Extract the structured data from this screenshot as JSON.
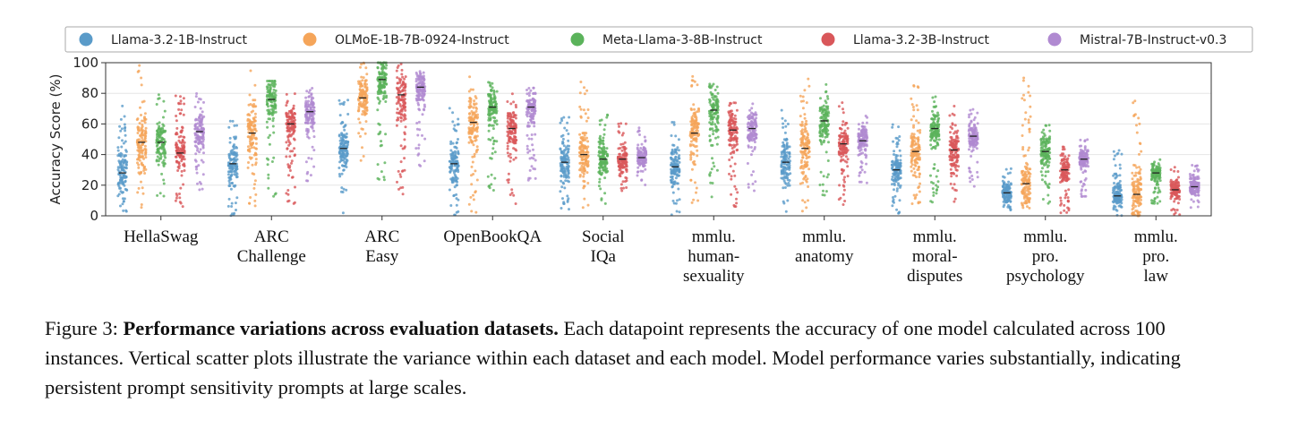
{
  "chart_data": {
    "type": "scatter",
    "subtype": "vertical strip plot with median markers",
    "ylabel": "Accuracy Score (%)",
    "ylim": [
      0,
      100
    ],
    "yticks": [
      "0",
      "20",
      "40",
      "60",
      "80",
      "100"
    ],
    "grid": true,
    "legend_position": "top",
    "categories": [
      [
        "HellaSwag"
      ],
      [
        "ARC",
        "Challenge"
      ],
      [
        "ARC",
        "Easy"
      ],
      [
        "OpenBookQA"
      ],
      [
        "Social",
        "IQa"
      ],
      [
        "mmlu.",
        "human-",
        "sexuality"
      ],
      [
        "mmlu.",
        "anatomy"
      ],
      [
        "mmlu.",
        "moral-",
        "disputes"
      ],
      [
        "mmlu.",
        "pro.",
        "psychology"
      ],
      [
        "mmlu.",
        "pro.",
        "law"
      ]
    ],
    "series": [
      {
        "name": "Llama-3.2-1B-Instruct",
        "color": "#5a9bc9",
        "median": [
          28,
          34,
          44,
          34,
          35,
          32,
          35,
          30,
          15,
          13
        ],
        "min": [
          2,
          0,
          0,
          0,
          3,
          0,
          0,
          0,
          3,
          0
        ],
        "max": [
          72,
          62,
          78,
          72,
          67,
          62,
          74,
          60,
          32,
          45
        ]
      },
      {
        "name": "OLMoE-1B-7B-0924-Instruct",
        "color": "#f5a55a",
        "median": [
          48,
          54,
          77,
          61,
          40,
          54,
          44,
          42,
          21,
          14
        ],
        "min": [
          2,
          6,
          36,
          2,
          3,
          5,
          2,
          6,
          5,
          0
        ],
        "max": [
          100,
          96,
          100,
          96,
          93,
          92,
          94,
          86,
          92,
          80
        ]
      },
      {
        "name": "Meta-Llama-3-8B-Instruct",
        "color": "#5bb35b",
        "median": [
          48,
          76,
          89,
          71,
          37,
          69,
          62,
          57,
          42,
          28
        ],
        "min": [
          12,
          12,
          22,
          16,
          7,
          12,
          12,
          6,
          8,
          8
        ],
        "max": [
          80,
          88,
          100,
          88,
          66,
          86,
          86,
          80,
          60,
          38
        ]
      },
      {
        "name": "Llama-3.2-3B-Instruct",
        "color": "#d9575a",
        "median": [
          41,
          60,
          79,
          57,
          37,
          56,
          47,
          43,
          30,
          17
        ],
        "min": [
          5,
          6,
          13,
          5,
          16,
          5,
          6,
          5,
          2,
          0
        ],
        "max": [
          80,
          80,
          100,
          80,
          62,
          76,
          76,
          72,
          46,
          32
        ]
      },
      {
        "name": "Mistral-7B-Instruct-v0.3",
        "color": "#b08ad1",
        "median": [
          55,
          68,
          84,
          71,
          38,
          57,
          49,
          52,
          37,
          19
        ],
        "min": [
          15,
          22,
          32,
          23,
          18,
          16,
          19,
          18,
          12,
          5
        ],
        "max": [
          80,
          84,
          95,
          84,
          58,
          77,
          66,
          70,
          50,
          35
        ]
      }
    ]
  },
  "caption": {
    "label": "Figure 3: ",
    "bold": "Performance variations across evaluation datasets.",
    "text": " Each datapoint represents the accuracy of one model calculated across 100 instances. Vertical scatter plots illustrate the variance within each dataset and each model. Model performance varies substantially, indicating persistent prompt sensitivity prompts at large scales."
  }
}
